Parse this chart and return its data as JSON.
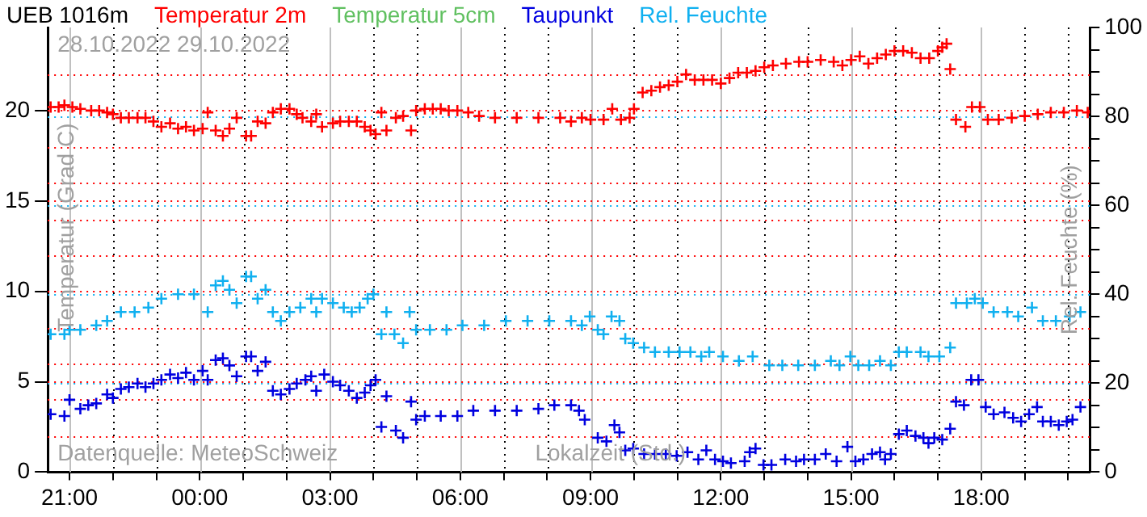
{
  "chart_data": {
    "type": "scatter",
    "title": "UEB 1016m",
    "xlabel": "Lokalzeit (Std.)",
    "ylabel": "Temperatur (Grad C)",
    "y2label": "Rel. Feuchte (%)",
    "annotations": [
      "28.10.2022 29.10.2022",
      "Datenquelle: MeteoSchweiz"
    ],
    "xlim": [
      "2022-10-28T20:30",
      "2022-10-29T20:30"
    ],
    "xticks": [
      {
        "value": "2022-10-28T21:00",
        "label": "21:00"
      },
      {
        "value": "2022-10-28T22:00",
        "label": null
      },
      {
        "value": "2022-10-28T23:00",
        "label": null
      },
      {
        "value": "2022-10-29T00:00",
        "label": "00:00"
      },
      {
        "value": "2022-10-29T01:00",
        "label": null
      },
      {
        "value": "2022-10-29T02:00",
        "label": null
      },
      {
        "value": "2022-10-29T03:00",
        "label": "03:00"
      },
      {
        "value": "2022-10-29T04:00",
        "label": null
      },
      {
        "value": "2022-10-29T05:00",
        "label": null
      },
      {
        "value": "2022-10-29T06:00",
        "label": "06:00"
      },
      {
        "value": "2022-10-29T07:00",
        "label": null
      },
      {
        "value": "2022-10-29T08:00",
        "label": null
      },
      {
        "value": "2022-10-29T09:00",
        "label": "09:00"
      },
      {
        "value": "2022-10-29T10:00",
        "label": null
      },
      {
        "value": "2022-10-29T11:00",
        "label": null
      },
      {
        "value": "2022-10-29T12:00",
        "label": "12:00"
      },
      {
        "value": "2022-10-29T13:00",
        "label": null
      },
      {
        "value": "2022-10-29T14:00",
        "label": null
      },
      {
        "value": "2022-10-29T15:00",
        "label": "15:00"
      },
      {
        "value": "2022-10-29T16:00",
        "label": null
      },
      {
        "value": "2022-10-29T17:00",
        "label": null
      },
      {
        "value": "2022-10-29T18:00",
        "label": "18:00"
      },
      {
        "value": "2022-10-29T19:00",
        "label": null
      },
      {
        "value": "2022-10-29T20:00",
        "label": null
      }
    ],
    "ylim": [
      0,
      24.6
    ],
    "yticks": [
      0,
      {
        "value": 2,
        "label": null
      },
      {
        "value": 4,
        "label": null
      },
      5,
      {
        "value": 6,
        "label": null
      },
      {
        "value": 8,
        "label": null
      },
      10,
      {
        "value": 12,
        "label": null
      },
      {
        "value": 14,
        "label": null
      },
      15,
      {
        "value": 16,
        "label": null
      },
      {
        "value": 18,
        "label": null
      },
      20,
      {
        "value": 22,
        "label": null
      }
    ],
    "y2lim": [
      0,
      100
    ],
    "y2ticks": [
      0,
      {
        "value": 5,
        "label": null
      },
      {
        "value": 10,
        "label": null
      },
      {
        "value": 15,
        "label": null
      },
      20,
      {
        "value": 25,
        "label": null
      },
      {
        "value": 30,
        "label": null
      },
      {
        "value": 35,
        "label": null
      },
      40,
      {
        "value": 45,
        "label": null
      },
      {
        "value": 50,
        "label": null
      },
      {
        "value": 55,
        "label": null
      },
      60,
      {
        "value": 65,
        "label": null
      },
      {
        "value": 70,
        "label": null
      },
      {
        "value": 75,
        "label": null
      },
      80,
      {
        "value": 85,
        "label": null
      },
      {
        "value": 90,
        "label": null
      },
      {
        "value": 95,
        "label": null
      },
      100
    ],
    "grid": true,
    "legend": "top",
    "marker": "cross",
    "series": [
      {
        "name": "Temperatur 2m",
        "color": "#ff0000",
        "x": [
          "2022-10-28T20:34",
          "2022-10-28T20:45",
          "2022-10-28T20:53",
          "2022-10-28T21:04",
          "2022-10-28T21:15",
          "2022-10-28T21:30",
          "2022-10-28T21:41",
          "2022-10-28T21:52",
          "2022-10-28T22:00",
          "2022-10-28T22:11",
          "2022-10-28T22:22",
          "2022-10-28T22:34",
          "2022-10-28T22:45",
          "2022-10-28T22:56",
          "2022-10-28T23:07",
          "2022-10-28T23:19",
          "2022-10-28T23:30",
          "2022-10-28T23:41",
          "2022-10-28T23:52",
          "2022-10-29T00:04",
          "2022-10-29T00:11",
          "2022-10-29T00:22",
          "2022-10-29T00:32",
          "2022-10-29T00:41",
          "2022-10-29T00:51",
          "2022-10-29T01:04",
          "2022-10-29T01:11",
          "2022-10-29T01:20",
          "2022-10-29T01:31",
          "2022-10-29T01:41",
          "2022-10-29T01:52",
          "2022-10-29T02:04",
          "2022-10-29T02:14",
          "2022-10-29T02:22",
          "2022-10-29T02:34",
          "2022-10-29T02:41",
          "2022-10-29T02:49",
          "2022-10-29T03:04",
          "2022-10-29T03:14",
          "2022-10-29T03:26",
          "2022-10-29T03:37",
          "2022-10-29T03:48",
          "2022-10-29T03:56",
          "2022-10-29T04:03",
          "2022-10-29T04:11",
          "2022-10-29T04:18",
          "2022-10-29T04:31",
          "2022-10-29T04:41",
          "2022-10-29T04:52",
          "2022-10-29T04:59",
          "2022-10-29T05:11",
          "2022-10-29T05:22",
          "2022-10-29T05:33",
          "2022-10-29T05:44",
          "2022-10-29T05:56",
          "2022-10-29T06:11",
          "2022-10-29T06:26",
          "2022-10-29T06:48",
          "2022-10-29T07:18",
          "2022-10-29T07:48",
          "2022-10-29T08:18",
          "2022-10-29T08:33",
          "2022-10-29T08:48",
          "2022-10-29T09:00",
          "2022-10-29T09:18",
          "2022-10-29T09:30",
          "2022-10-29T09:42",
          "2022-10-29T09:54",
          "2022-10-29T10:00",
          "2022-10-29T10:12",
          "2022-10-29T10:24",
          "2022-10-29T10:36",
          "2022-10-29T10:48",
          "2022-10-29T11:00",
          "2022-10-29T11:12",
          "2022-10-29T11:24",
          "2022-10-29T11:36",
          "2022-10-29T11:48",
          "2022-10-29T12:00",
          "2022-10-29T12:12",
          "2022-10-29T12:24",
          "2022-10-29T12:36",
          "2022-10-29T12:48",
          "2022-10-29T13:00",
          "2022-10-29T13:12",
          "2022-10-29T13:30",
          "2022-10-29T13:48",
          "2022-10-29T14:00",
          "2022-10-29T14:18",
          "2022-10-29T14:36",
          "2022-10-29T14:48",
          "2022-10-29T15:00",
          "2022-10-29T15:12",
          "2022-10-29T15:24",
          "2022-10-29T15:36",
          "2022-10-29T15:48",
          "2022-10-29T16:00",
          "2022-10-29T16:12",
          "2022-10-29T16:24",
          "2022-10-29T16:36",
          "2022-10-29T16:48",
          "2022-10-29T17:00",
          "2022-10-29T17:06",
          "2022-10-29T17:12",
          "2022-10-29T17:17",
          "2022-10-29T17:25",
          "2022-10-29T17:38",
          "2022-10-29T17:47",
          "2022-10-29T17:58",
          "2022-10-29T18:09",
          "2022-10-29T18:24",
          "2022-10-29T18:42",
          "2022-10-29T19:00",
          "2022-10-29T19:18",
          "2022-10-29T19:36",
          "2022-10-29T19:54",
          "2022-10-29T20:12",
          "2022-10-29T20:27"
        ],
        "values": [
          20.2,
          20.2,
          20.3,
          20.2,
          20.1,
          20.0,
          20.0,
          19.9,
          19.8,
          19.6,
          19.6,
          19.6,
          19.6,
          19.4,
          19.1,
          19.3,
          19.0,
          19.1,
          18.9,
          19.0,
          19.9,
          18.9,
          18.6,
          19.0,
          19.6,
          18.6,
          18.6,
          19.4,
          19.3,
          19.9,
          20.1,
          20.1,
          19.8,
          19.6,
          19.4,
          19.8,
          19.1,
          19.3,
          19.4,
          19.4,
          19.4,
          19.1,
          18.9,
          18.7,
          19.9,
          18.9,
          19.6,
          19.7,
          18.9,
          20.0,
          20.1,
          20.1,
          20.1,
          20.0,
          20.0,
          19.9,
          19.7,
          19.6,
          19.6,
          19.6,
          19.6,
          19.4,
          19.6,
          19.5,
          19.5,
          20.1,
          19.5,
          19.6,
          20.1,
          21.0,
          21.1,
          21.3,
          21.4,
          21.6,
          22.0,
          21.7,
          21.7,
          21.7,
          21.5,
          21.8,
          22.1,
          22.1,
          22.2,
          22.4,
          22.5,
          22.6,
          22.7,
          22.7,
          22.8,
          22.7,
          22.5,
          22.8,
          23.0,
          22.6,
          22.9,
          23.1,
          23.3,
          23.3,
          23.2,
          22.9,
          22.9,
          23.3,
          23.5,
          23.7,
          22.3,
          19.5,
          19.1,
          20.2,
          20.2,
          19.5,
          19.5,
          19.6,
          19.7,
          19.8,
          19.9,
          19.9,
          20.0,
          19.9
        ]
      },
      {
        "name": "Temperatur 5cm",
        "color": "#60c060"
      },
      {
        "name": "Taupunkt",
        "color": "#0000e0",
        "x": [
          "2022-10-28T20:34",
          "2022-10-28T20:53",
          "2022-10-28T21:00",
          "2022-10-28T21:15",
          "2022-10-28T21:26",
          "2022-10-28T21:37",
          "2022-10-28T21:52",
          "2022-10-28T22:00",
          "2022-10-28T22:11",
          "2022-10-28T22:22",
          "2022-10-28T22:34",
          "2022-10-28T22:45",
          "2022-10-28T22:56",
          "2022-10-28T23:07",
          "2022-10-28T23:19",
          "2022-10-28T23:30",
          "2022-10-28T23:41",
          "2022-10-28T23:52",
          "2022-10-29T00:04",
          "2022-10-29T00:11",
          "2022-10-29T00:22",
          "2022-10-29T00:32",
          "2022-10-29T00:41",
          "2022-10-29T00:51",
          "2022-10-29T01:04",
          "2022-10-29T01:11",
          "2022-10-29T01:20",
          "2022-10-29T01:31",
          "2022-10-29T01:41",
          "2022-10-29T01:52",
          "2022-10-29T02:04",
          "2022-10-29T02:14",
          "2022-10-29T02:26",
          "2022-10-29T02:34",
          "2022-10-29T02:41",
          "2022-10-29T02:52",
          "2022-10-29T03:04",
          "2022-10-29T03:14",
          "2022-10-29T03:26",
          "2022-10-29T03:37",
          "2022-10-29T03:48",
          "2022-10-29T03:56",
          "2022-10-29T04:03",
          "2022-10-29T04:11",
          "2022-10-29T04:18",
          "2022-10-29T04:31",
          "2022-10-29T04:41",
          "2022-10-29T04:52",
          "2022-10-29T04:59",
          "2022-10-29T05:11",
          "2022-10-29T05:33",
          "2022-10-29T05:56",
          "2022-10-29T06:18",
          "2022-10-29T06:48",
          "2022-10-29T07:18",
          "2022-10-29T07:48",
          "2022-10-29T08:10",
          "2022-10-29T08:33",
          "2022-10-29T08:44",
          "2022-10-29T08:52",
          "2022-10-29T09:10",
          "2022-10-29T09:22",
          "2022-10-29T09:33",
          "2022-10-29T09:40",
          "2022-10-29T09:48",
          "2022-10-29T09:59",
          "2022-10-29T10:14",
          "2022-10-29T10:29",
          "2022-10-29T10:44",
          "2022-10-29T10:59",
          "2022-10-29T11:14",
          "2022-10-29T11:29",
          "2022-10-29T11:40",
          "2022-10-29T11:52",
          "2022-10-29T12:03",
          "2022-10-29T12:14",
          "2022-10-29T12:33",
          "2022-10-29T12:40",
          "2022-10-29T12:48",
          "2022-10-29T12:59",
          "2022-10-29T13:10",
          "2022-10-29T13:29",
          "2022-10-29T13:44",
          "2022-10-29T13:55",
          "2022-10-29T14:10",
          "2022-10-29T14:25",
          "2022-10-29T14:40",
          "2022-10-29T14:55",
          "2022-10-29T15:06",
          "2022-10-29T15:17",
          "2022-10-29T15:29",
          "2022-10-29T15:40",
          "2022-10-29T15:47",
          "2022-10-29T15:55",
          "2022-10-29T16:06",
          "2022-10-29T16:17",
          "2022-10-29T16:29",
          "2022-10-29T16:40",
          "2022-10-29T16:47",
          "2022-10-29T16:55",
          "2022-10-29T17:06",
          "2022-10-29T17:17",
          "2022-10-29T17:25",
          "2022-10-29T17:36",
          "2022-10-29T17:46",
          "2022-10-29T17:56",
          "2022-10-29T18:06",
          "2022-10-29T18:17",
          "2022-10-29T18:32",
          "2022-10-29T18:44",
          "2022-10-29T18:55",
          "2022-10-29T19:06",
          "2022-10-29T19:17",
          "2022-10-29T19:25",
          "2022-10-29T19:36",
          "2022-10-29T19:47",
          "2022-10-29T19:58",
          "2022-10-29T20:06",
          "2022-10-29T20:17"
        ],
        "values": [
          3.2,
          3.1,
          4.0,
          3.5,
          3.7,
          3.8,
          4.3,
          4.1,
          4.6,
          4.7,
          4.9,
          4.7,
          4.9,
          5.1,
          5.4,
          5.2,
          5.5,
          5.1,
          5.6,
          5.1,
          6.2,
          6.3,
          5.9,
          5.3,
          6.4,
          6.4,
          5.6,
          6.1,
          4.5,
          4.3,
          4.6,
          4.9,
          5.1,
          5.3,
          4.5,
          5.4,
          5.0,
          4.8,
          4.5,
          4.1,
          4.4,
          4.8,
          5.1,
          2.5,
          4.2,
          2.3,
          1.9,
          3.9,
          2.9,
          3.1,
          3.1,
          3.1,
          3.4,
          3.4,
          3.4,
          3.5,
          3.7,
          3.7,
          3.4,
          2.9,
          1.9,
          1.7,
          2.6,
          2.2,
          1.2,
          1.3,
          1.0,
          1.0,
          1.0,
          0.9,
          1.1,
          0.7,
          1.2,
          0.7,
          0.6,
          0.5,
          0.6,
          1.1,
          1.3,
          0.4,
          0.4,
          0.7,
          0.6,
          0.7,
          0.7,
          1.0,
          0.6,
          1.4,
          0.6,
          0.7,
          1.0,
          1.1,
          0.7,
          1.0,
          2.1,
          2.3,
          2.0,
          1.9,
          1.6,
          1.9,
          1.8,
          2.4,
          3.9,
          3.7,
          5.1,
          5.1,
          3.6,
          3.2,
          3.3,
          3.0,
          2.8,
          3.2,
          3.6,
          2.8,
          2.8,
          2.6,
          2.8,
          2.9,
          3.6
        ]
      },
      {
        "name": "Rel. Feuchte",
        "color": "#10b0f0",
        "axis": "y2",
        "x": [
          "2022-10-28T20:34",
          "2022-10-28T20:53",
          "2022-10-28T21:00",
          "2022-10-28T21:15",
          "2022-10-28T21:37",
          "2022-10-28T21:52",
          "2022-10-28T22:11",
          "2022-10-28T22:30",
          "2022-10-28T22:49",
          "2022-10-28T23:07",
          "2022-10-28T23:30",
          "2022-10-28T23:52",
          "2022-10-29T00:11",
          "2022-10-29T00:22",
          "2022-10-29T00:32",
          "2022-10-29T00:41",
          "2022-10-29T00:51",
          "2022-10-29T01:04",
          "2022-10-29T01:11",
          "2022-10-29T01:20",
          "2022-10-29T01:31",
          "2022-10-29T01:41",
          "2022-10-29T01:52",
          "2022-10-29T02:04",
          "2022-10-29T02:19",
          "2022-10-29T02:34",
          "2022-10-29T02:41",
          "2022-10-29T02:49",
          "2022-10-29T03:04",
          "2022-10-29T03:19",
          "2022-10-29T03:30",
          "2022-10-29T03:41",
          "2022-10-29T03:52",
          "2022-10-29T04:00",
          "2022-10-29T04:11",
          "2022-10-29T04:18",
          "2022-10-29T04:29",
          "2022-10-29T04:41",
          "2022-10-29T04:50",
          "2022-10-29T04:59",
          "2022-10-29T05:18",
          "2022-10-29T05:41",
          "2022-10-29T06:03",
          "2022-10-29T06:33",
          "2022-10-29T07:03",
          "2022-10-29T07:33",
          "2022-10-29T08:03",
          "2022-10-29T08:33",
          "2022-10-29T08:48",
          "2022-10-29T08:59",
          "2022-10-29T09:10",
          "2022-10-29T09:18",
          "2022-10-29T09:29",
          "2022-10-29T09:40",
          "2022-10-29T09:48",
          "2022-10-29T09:59",
          "2022-10-29T10:14",
          "2022-10-29T10:29",
          "2022-10-29T10:48",
          "2022-10-29T11:03",
          "2022-10-29T11:18",
          "2022-10-29T11:33",
          "2022-10-29T11:44",
          "2022-10-29T12:03",
          "2022-10-29T12:25",
          "2022-10-29T12:44",
          "2022-10-29T13:07",
          "2022-10-29T13:25",
          "2022-10-29T13:47",
          "2022-10-29T14:10",
          "2022-10-29T14:32",
          "2022-10-29T14:44",
          "2022-10-29T14:59",
          "2022-10-29T15:10",
          "2022-10-29T15:25",
          "2022-10-29T15:40",
          "2022-10-29T15:55",
          "2022-10-29T16:06",
          "2022-10-29T16:17",
          "2022-10-29T16:36",
          "2022-10-29T16:47",
          "2022-10-29T17:02",
          "2022-10-29T17:17",
          "2022-10-29T17:25",
          "2022-10-29T17:40",
          "2022-10-29T17:51",
          "2022-10-29T18:02",
          "2022-10-29T18:17",
          "2022-10-29T18:36",
          "2022-10-29T18:51",
          "2022-10-29T19:10",
          "2022-10-29T19:25",
          "2022-10-29T19:43",
          "2022-10-29T20:02",
          "2022-10-29T20:17"
        ],
        "values": [
          31,
          31,
          32,
          32,
          33,
          34,
          36,
          36,
          37,
          39,
          40,
          40,
          36,
          42,
          43,
          41,
          38,
          44,
          44,
          39,
          41,
          36,
          34,
          36,
          37,
          39,
          36,
          39,
          38,
          37,
          36,
          37,
          39,
          40,
          31,
          36,
          31,
          29,
          36,
          32,
          32,
          32,
          33,
          33,
          34,
          34,
          34,
          34,
          33,
          35,
          32,
          31,
          35,
          34,
          30,
          29,
          28,
          27,
          27,
          27,
          27,
          26,
          27,
          26,
          25,
          26,
          24,
          24,
          24,
          24,
          25,
          24,
          26,
          24,
          24,
          25,
          24,
          27,
          27,
          27,
          26,
          26,
          28,
          38,
          38,
          39,
          38,
          36,
          36,
          35,
          37,
          34,
          34,
          35,
          36
        ]
      }
    ]
  }
}
